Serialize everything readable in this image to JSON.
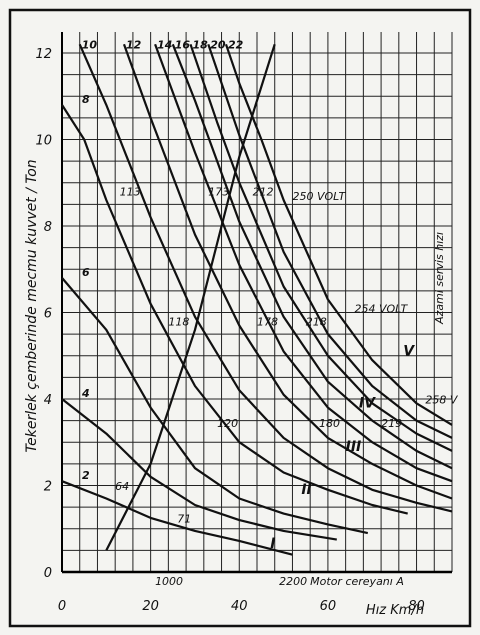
{
  "chart_data": {
    "type": "line",
    "xlabel": "Hız  Km/h",
    "ylabel": "Tekerlek çemberinde mecmu kuvvet / Ton",
    "xlim": [
      0,
      88
    ],
    "ylim": [
      0,
      12.3
    ],
    "x_ticks": [
      {
        "value": 0,
        "label": "0"
      },
      {
        "value": 20,
        "label": "20"
      },
      {
        "value": 40,
        "label": "40"
      },
      {
        "value": 60,
        "label": "60"
      },
      {
        "value": 80,
        "label": "80"
      }
    ],
    "y_ticks": [
      {
        "value": 0,
        "label": "0"
      },
      {
        "value": 2,
        "label": "2"
      },
      {
        "value": 4,
        "label": "4"
      },
      {
        "value": 6,
        "label": "6"
      },
      {
        "value": 8,
        "label": "8"
      },
      {
        "value": 10,
        "label": "10"
      },
      {
        "value": 12,
        "label": "12"
      }
    ],
    "grid": true,
    "series": [
      {
        "name": "2",
        "points": [
          [
            0,
            2.1
          ],
          [
            10,
            1.7
          ],
          [
            20,
            1.25
          ],
          [
            30,
            0.95
          ],
          [
            40,
            0.72
          ],
          [
            52,
            0.4
          ]
        ]
      },
      {
        "name": "4",
        "points": [
          [
            0,
            4.0
          ],
          [
            10,
            3.2
          ],
          [
            20,
            2.2
          ],
          [
            30,
            1.55
          ],
          [
            40,
            1.2
          ],
          [
            50,
            0.95
          ],
          [
            62,
            0.75
          ]
        ]
      },
      {
        "name": "6",
        "points": [
          [
            0,
            6.8
          ],
          [
            10,
            5.6
          ],
          [
            20,
            3.8
          ],
          [
            30,
            2.4
          ],
          [
            40,
            1.7
          ],
          [
            50,
            1.35
          ],
          [
            60,
            1.1
          ],
          [
            69,
            0.9
          ]
        ]
      },
      {
        "name": "8",
        "points": [
          [
            0,
            10.8
          ],
          [
            5,
            10.0
          ],
          [
            10,
            8.6
          ],
          [
            20,
            6.2
          ],
          [
            30,
            4.3
          ],
          [
            40,
            3.0
          ],
          [
            50,
            2.3
          ],
          [
            60,
            1.9
          ],
          [
            70,
            1.55
          ],
          [
            78,
            1.35
          ]
        ]
      },
      {
        "name": "10",
        "points": [
          [
            4,
            12.2
          ],
          [
            10,
            10.8
          ],
          [
            20,
            8.2
          ],
          [
            30,
            5.9
          ],
          [
            40,
            4.2
          ],
          [
            50,
            3.1
          ],
          [
            60,
            2.4
          ],
          [
            70,
            1.9
          ],
          [
            80,
            1.6
          ],
          [
            88,
            1.4
          ]
        ]
      },
      {
        "name": "12",
        "points": [
          [
            14,
            12.2
          ],
          [
            20,
            10.5
          ],
          [
            30,
            7.8
          ],
          [
            40,
            5.7
          ],
          [
            50,
            4.1
          ],
          [
            60,
            3.1
          ],
          [
            70,
            2.5
          ],
          [
            80,
            2.0
          ],
          [
            88,
            1.7
          ]
        ]
      },
      {
        "name": "14",
        "points": [
          [
            21,
            12.2
          ],
          [
            30,
            9.7
          ],
          [
            40,
            7.1
          ],
          [
            50,
            5.1
          ],
          [
            60,
            3.8
          ],
          [
            70,
            3.0
          ],
          [
            80,
            2.4
          ],
          [
            88,
            2.1
          ]
        ]
      },
      {
        "name": "16",
        "points": [
          [
            25,
            12.2
          ],
          [
            30,
            10.9
          ],
          [
            40,
            8.1
          ],
          [
            50,
            5.9
          ],
          [
            60,
            4.4
          ],
          [
            70,
            3.5
          ],
          [
            80,
            2.8
          ],
          [
            88,
            2.4
          ]
        ]
      },
      {
        "name": "18",
        "points": [
          [
            29,
            12.2
          ],
          [
            35,
            10.4
          ],
          [
            40,
            9.0
          ],
          [
            50,
            6.6
          ],
          [
            60,
            5.0
          ],
          [
            70,
            3.9
          ],
          [
            80,
            3.2
          ],
          [
            88,
            2.8
          ]
        ]
      },
      {
        "name": "20",
        "points": [
          [
            33,
            12.2
          ],
          [
            40,
            10.1
          ],
          [
            50,
            7.4
          ],
          [
            60,
            5.5
          ],
          [
            70,
            4.3
          ],
          [
            80,
            3.5
          ],
          [
            88,
            3.1
          ]
        ]
      },
      {
        "name": "22",
        "points": [
          [
            37,
            12.2
          ],
          [
            40,
            11.3
          ],
          [
            45,
            10.0
          ],
          [
            50,
            8.6
          ],
          [
            60,
            6.3
          ],
          [
            70,
            4.9
          ],
          [
            80,
            3.9
          ],
          [
            88,
            3.4
          ]
        ]
      },
      {
        "name": "",
        "points": [
          [
            10,
            0.5
          ],
          [
            20,
            2.5
          ],
          [
            30,
            5.6
          ],
          [
            40,
            9.6
          ],
          [
            48,
            12.2
          ]
        ]
      }
    ],
    "annotations": [
      {
        "text": "250 VOLT",
        "x": 52,
        "y": 8.6
      },
      {
        "text": "254 VOLT",
        "x": 66,
        "y": 6.0
      },
      {
        "text": "258 V",
        "x": 82,
        "y": 3.9
      },
      {
        "text": "Azami servis hızı",
        "x": 86,
        "y": 6.8
      },
      {
        "text": "Motor cereyanı  A",
        "x": 56,
        "y": -0.3
      },
      {
        "text": "1000",
        "x": 21,
        "y": -0.3
      },
      {
        "text": "2200",
        "x": 49,
        "y": -0.3
      },
      {
        "text": "64",
        "x": 12,
        "y": 1.9
      },
      {
        "text": "71",
        "x": 26,
        "y": 1.15
      },
      {
        "text": "113",
        "x": 13,
        "y": 8.7
      },
      {
        "text": "118",
        "x": 24,
        "y": 5.7
      },
      {
        "text": "120",
        "x": 35,
        "y": 3.35
      },
      {
        "text": "173",
        "x": 33,
        "y": 8.7
      },
      {
        "text": "178",
        "x": 44,
        "y": 5.7
      },
      {
        "text": "180",
        "x": 58,
        "y": 3.35
      },
      {
        "text": "212",
        "x": 43,
        "y": 8.7
      },
      {
        "text": "218",
        "x": 55,
        "y": 5.7
      },
      {
        "text": "219",
        "x": 72,
        "y": 3.35
      },
      {
        "text": "I",
        "x": 47,
        "y": 0.55
      },
      {
        "text": "II",
        "x": 54,
        "y": 1.8
      },
      {
        "text": "III",
        "x": 64,
        "y": 2.8
      },
      {
        "text": "IV",
        "x": 67,
        "y": 3.8
      },
      {
        "text": "V",
        "x": 77,
        "y": 5.0
      }
    ]
  }
}
